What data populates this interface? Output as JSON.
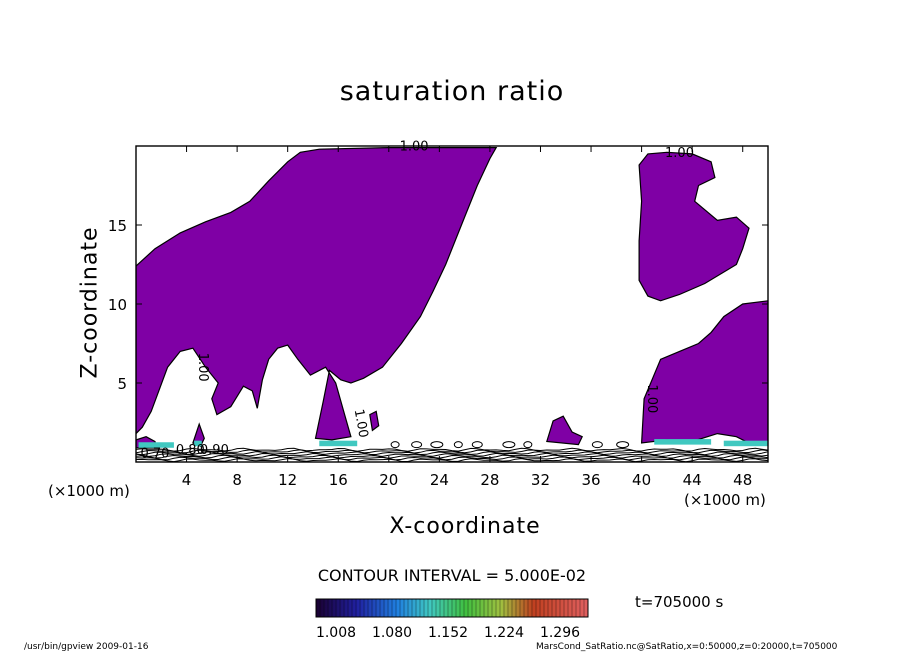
{
  "chart_data": {
    "type": "contour",
    "title": "saturation ratio",
    "xlabel": "X-coordinate",
    "ylabel": "Z-coordinate",
    "x_unit": "(×1000 m)",
    "y_unit": "(×1000 m)",
    "xlim": [
      0,
      50
    ],
    "ylim": [
      0,
      20
    ],
    "x_ticks": [
      4,
      8,
      12,
      16,
      20,
      24,
      28,
      32,
      36,
      40,
      44,
      48
    ],
    "y_ticks": [
      5,
      10,
      15
    ],
    "contour_labels": [
      "1.00",
      "1.00",
      "1.00",
      "1.00",
      "1.00",
      "0.70",
      "0.80",
      "0.90"
    ],
    "contour_interval": "CONTOUR INTERVAL = 5.000E-02",
    "colorbar_ticks": [
      "1.008",
      "1.080",
      "1.152",
      "1.224",
      "1.296"
    ],
    "time_label": "t=705000 s",
    "fill_color": "#7f00a5"
  },
  "footer": {
    "left": "/usr/bin/gpview  2009-01-16",
    "right": "MarsCond_SatRatio.nc@SatRatio,x=0:50000,z=0:20000,t=705000"
  }
}
